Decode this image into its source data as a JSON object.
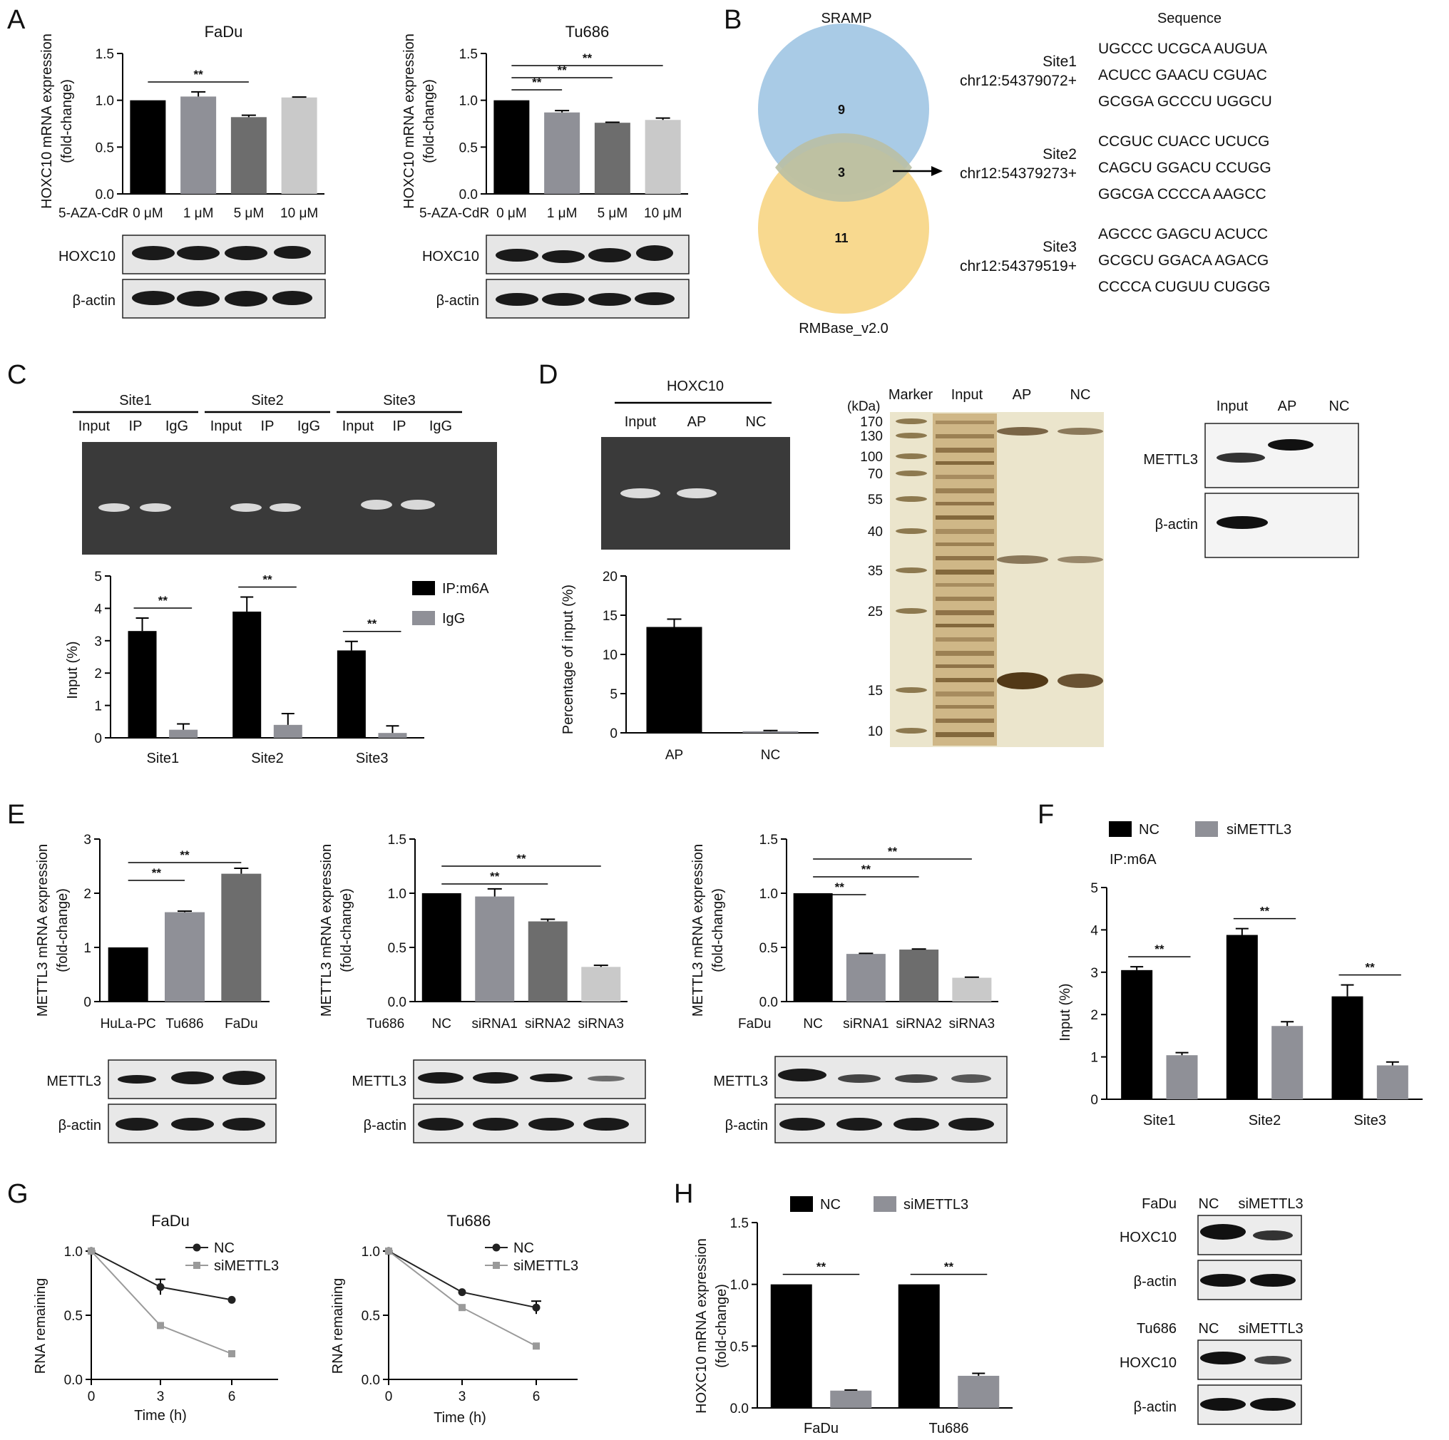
{
  "panel_labels": [
    "A",
    "B",
    "C",
    "D",
    "E",
    "F",
    "G",
    "H"
  ],
  "colors": {
    "black": "#000000",
    "grey_dark": "#6d6d6d",
    "grey_mid": "#8f9097",
    "grey_light": "#c9c9c9",
    "venn_blue": "#a9cbe6",
    "venn_yellow": "#f7d27b",
    "gel_bg": "#3a3a3a"
  },
  "panel_A": {
    "sig": "**",
    "xlabel_prefix": "5-AZA-CdR",
    "ylabel": [
      "HOXC10 mRNA expression",
      "(fold-change)"
    ],
    "blot_labels": [
      "HOXC10",
      "β-actin"
    ]
  },
  "panel_B": {
    "venn_top": "SRAMP",
    "venn_bottom": "RMBase_v2.0",
    "counts": {
      "top_only": "9",
      "overlap": "3",
      "bottom_only": "11"
    },
    "sequence_header": "Sequence",
    "sites": [
      {
        "name": "Site1",
        "pos": "chr12:54379072+",
        "seq": [
          "UGCCC UCGCA AUGUA",
          "ACUCC GAACU CGUAC",
          "GCGGA GCCCU UGGCU"
        ]
      },
      {
        "name": "Site2",
        "pos": "chr12:54379273+",
        "seq": [
          "CCGUC CUACC UCUCG",
          "CAGCU GGACU CCUGG",
          "GGCGA CCCCA AAGCC"
        ]
      },
      {
        "name": "Site3",
        "pos": "chr12:54379519+",
        "seq": [
          "AGCCC GAGCU ACUCC",
          "GCGCU GGACA AGACG",
          "CCCCA CUGUU CUGGG"
        ]
      }
    ]
  },
  "panel_C": {
    "gel_groups": [
      "Site1",
      "Site2",
      "Site3"
    ],
    "gel_lanes": [
      "Input",
      "IP",
      "IgG"
    ],
    "legend": [
      "IP:m6A",
      "IgG"
    ],
    "ylabel": "Input (%)",
    "sig": "**"
  },
  "panel_D": {
    "gel_title": "HOXC10",
    "gel_lanes": [
      "Input",
      "AP",
      "NC"
    ],
    "ylabel": "Percentage of input (%)",
    "silver_lanes": [
      "Marker",
      "Input",
      "AP",
      "NC"
    ],
    "kda_label": "(kDa)",
    "kda_ticks": [
      "170",
      "130",
      "100",
      "70",
      "55",
      "40",
      "35",
      "25",
      "15",
      "10"
    ],
    "wb_lanes": [
      "Input",
      "AP",
      "NC"
    ],
    "wb_labels": [
      "METTL3",
      "β-actin"
    ]
  },
  "panel_E": {
    "ylabel": [
      "METTL3 mRNA expression",
      "(fold-change)"
    ],
    "sig": "**",
    "blot_labels": [
      "METTL3",
      "β-actin"
    ],
    "prefix_tu": "Tu686",
    "prefix_fa": "FaDu"
  },
  "panel_F": {
    "legend": [
      "NC",
      "siMETTL3"
    ],
    "subtitle": "IP:m6A",
    "ylabel": "Input (%)",
    "sig": "**"
  },
  "panel_G": {
    "legend": [
      "NC",
      "siMETTL3"
    ],
    "ylabel": "RNA remaining",
    "xlabel": "Time (h)"
  },
  "panel_H": {
    "legend": [
      "NC",
      "siMETTL3"
    ],
    "ylabel": [
      "HOXC10 mRNA expression",
      "(fold-change)"
    ],
    "sig": "**",
    "blots": [
      {
        "cell": "FaDu",
        "lanes": [
          "NC",
          "siMETTL3"
        ],
        "labels": [
          "HOXC10",
          "β-actin"
        ]
      },
      {
        "cell": "Tu686",
        "lanes": [
          "NC",
          "siMETTL3"
        ],
        "labels": [
          "HOXC10",
          "β-actin"
        ]
      }
    ]
  },
  "chart_data": [
    {
      "id": "A1",
      "type": "bar",
      "title": "FaDu",
      "categories": [
        "0 μM",
        "1 μM",
        "5 μM",
        "10 μM"
      ],
      "values": [
        1.0,
        1.04,
        0.82,
        1.03
      ],
      "errors": [
        0,
        0.05,
        0.02,
        0.005
      ],
      "ylim": [
        0,
        1.5
      ],
      "yticks": [
        "0.0",
        "0.5",
        "1.0",
        "1.5"
      ],
      "colors": [
        "#000000",
        "#8f9097",
        "#6d6d6d",
        "#c9c9c9"
      ],
      "sig_pairs": [
        [
          0,
          2
        ]
      ]
    },
    {
      "id": "A2",
      "type": "bar",
      "title": "Tu686",
      "categories": [
        "0 μM",
        "1 μM",
        "5 μM",
        "10 μM"
      ],
      "values": [
        1.0,
        0.87,
        0.76,
        0.79
      ],
      "errors": [
        0,
        0.02,
        0.005,
        0.02
      ],
      "ylim": [
        0,
        1.5
      ],
      "yticks": [
        "0.0",
        "0.5",
        "1.0",
        "1.5"
      ],
      "colors": [
        "#000000",
        "#8f9097",
        "#6d6d6d",
        "#c9c9c9"
      ],
      "sig_pairs": [
        [
          0,
          1
        ],
        [
          0,
          2
        ],
        [
          0,
          3
        ]
      ]
    },
    {
      "id": "C",
      "type": "bar",
      "categories": [
        "Site1",
        "Site2",
        "Site3"
      ],
      "series": [
        {
          "name": "IP:m6A",
          "values": [
            3.3,
            3.9,
            2.7
          ],
          "errors": [
            0.4,
            0.45,
            0.28
          ]
        },
        {
          "name": "IgG",
          "values": [
            0.25,
            0.4,
            0.15
          ],
          "errors": [
            0.18,
            0.35,
            0.22
          ]
        }
      ],
      "ylim": [
        0,
        5
      ],
      "yticks": [
        "0",
        "1",
        "2",
        "3",
        "4",
        "5"
      ]
    },
    {
      "id": "D",
      "type": "bar",
      "categories": [
        "AP",
        "NC"
      ],
      "values": [
        13.5,
        0.2
      ],
      "errors": [
        1.0,
        0.1
      ],
      "ylim": [
        0,
        20
      ],
      "yticks": [
        "0",
        "5",
        "10",
        "15",
        "20"
      ],
      "colors": [
        "#000000",
        "#8f9097"
      ]
    },
    {
      "id": "E1",
      "type": "bar",
      "categories": [
        "HuLa-PC",
        "Tu686",
        "FaDu"
      ],
      "values": [
        1.0,
        1.65,
        2.36
      ],
      "errors": [
        0,
        0.02,
        0.1
      ],
      "ylim": [
        0,
        3
      ],
      "yticks": [
        "0",
        "1",
        "2",
        "3"
      ],
      "colors": [
        "#000000",
        "#8f9097",
        "#6d6d6d"
      ],
      "sig_pairs": [
        [
          0,
          1
        ],
        [
          0,
          2
        ]
      ]
    },
    {
      "id": "E2",
      "type": "bar",
      "categories": [
        "NC",
        "siRNA1",
        "siRNA2",
        "siRNA3"
      ],
      "values": [
        1.0,
        0.97,
        0.74,
        0.32
      ],
      "errors": [
        0,
        0.07,
        0.02,
        0.015
      ],
      "ylim": [
        0,
        1.5
      ],
      "yticks": [
        "0.0",
        "0.5",
        "1.0",
        "1.5"
      ],
      "colors": [
        "#000000",
        "#8f9097",
        "#6d6d6d",
        "#c9c9c9"
      ],
      "sig_pairs": [
        [
          0,
          2
        ],
        [
          0,
          3
        ]
      ]
    },
    {
      "id": "E3",
      "type": "bar",
      "categories": [
        "NC",
        "siRNA1",
        "siRNA2",
        "siRNA3"
      ],
      "values": [
        1.0,
        0.44,
        0.48,
        0.22
      ],
      "errors": [
        0,
        0.005,
        0.005,
        0.005
      ],
      "ylim": [
        0,
        1.5
      ],
      "yticks": [
        "0.0",
        "0.5",
        "1.0",
        "1.5"
      ],
      "colors": [
        "#000000",
        "#8f9097",
        "#6d6d6d",
        "#c9c9c9"
      ],
      "sig_pairs": [
        [
          0,
          1
        ],
        [
          0,
          2
        ],
        [
          0,
          3
        ]
      ]
    },
    {
      "id": "F",
      "type": "bar",
      "categories": [
        "Site1",
        "Site2",
        "Site3"
      ],
      "series": [
        {
          "name": "NC",
          "values": [
            3.05,
            3.88,
            2.43
          ],
          "errors": [
            0.08,
            0.15,
            0.27
          ]
        },
        {
          "name": "siMETTL3",
          "values": [
            1.04,
            1.73,
            0.8
          ],
          "errors": [
            0.06,
            0.1,
            0.08
          ]
        }
      ],
      "ylim": [
        0,
        5
      ],
      "yticks": [
        "0",
        "1",
        "2",
        "3",
        "4",
        "5"
      ]
    },
    {
      "id": "G1",
      "type": "line",
      "title": "FaDu",
      "x": [
        0,
        3,
        6
      ],
      "series": [
        {
          "name": "NC",
          "values": [
            1.0,
            0.72,
            0.62
          ],
          "errors": [
            0,
            0.06,
            0
          ]
        },
        {
          "name": "siMETTL3",
          "values": [
            1.0,
            0.42,
            0.2
          ],
          "errors": [
            0,
            0,
            0
          ]
        }
      ],
      "ylim": [
        0,
        1.0
      ],
      "yticks": [
        "0.0",
        "0.5",
        "1.0"
      ],
      "xticks": [
        "0",
        "3",
        "6"
      ]
    },
    {
      "id": "G2",
      "type": "line",
      "title": "Tu686",
      "x": [
        0,
        3,
        6
      ],
      "series": [
        {
          "name": "NC",
          "values": [
            1.0,
            0.68,
            0.56
          ],
          "errors": [
            0,
            0,
            0.05
          ]
        },
        {
          "name": "siMETTL3",
          "values": [
            1.0,
            0.56,
            0.26
          ],
          "errors": [
            0,
            0,
            0
          ]
        }
      ],
      "ylim": [
        0,
        1.0
      ],
      "yticks": [
        "0.0",
        "0.5",
        "1.0"
      ],
      "xticks": [
        "0",
        "3",
        "6"
      ]
    },
    {
      "id": "H",
      "type": "bar",
      "categories": [
        "FaDu",
        "Tu686"
      ],
      "series": [
        {
          "name": "NC",
          "values": [
            1.0,
            1.0
          ],
          "errors": [
            0,
            0
          ]
        },
        {
          "name": "siMETTL3",
          "values": [
            0.14,
            0.26
          ],
          "errors": [
            0.005,
            0.02
          ]
        }
      ],
      "ylim": [
        0,
        1.5
      ],
      "yticks": [
        "0.0",
        "0.5",
        "1.0",
        "1.5"
      ]
    }
  ]
}
